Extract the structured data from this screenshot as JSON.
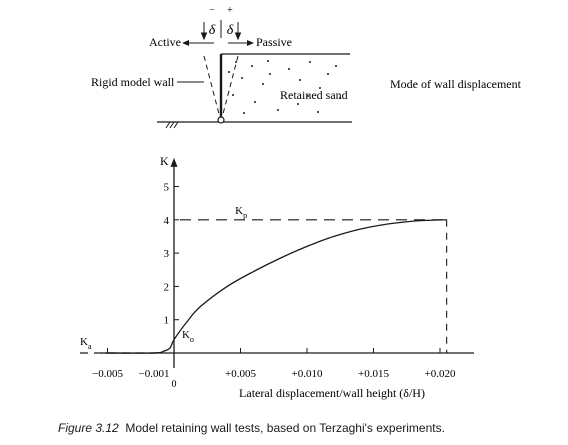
{
  "diagram": {
    "active_label": "Active",
    "passive_label": "Passive",
    "delta_minus": "−",
    "delta_plus": "+",
    "delta_left": "δ",
    "delta_right": "δ",
    "wall_label": "Rigid model wall",
    "sand_label": "Retained sand",
    "mode_label": "Mode of wall displacement"
  },
  "chart_data": {
    "type": "line",
    "ylabel": "K",
    "xlabel": "Lateral displacement/wall height (δ/H)",
    "xlim": [
      -0.006,
      0.023
    ],
    "ylim": [
      -0.3,
      5.8
    ],
    "x_ticks": [
      {
        "value": -0.005,
        "label": "−0.005"
      },
      {
        "value": -0.001,
        "label": "−0.001"
      },
      {
        "value": 0.005,
        "label": "+0.005"
      },
      {
        "value": 0.01,
        "label": "+0.010"
      },
      {
        "value": 0.015,
        "label": "+0.015"
      },
      {
        "value": 0.02,
        "label": "+0.020"
      }
    ],
    "zero_label": "0",
    "y_ticks": [
      {
        "value": 1,
        "label": "1"
      },
      {
        "value": 2,
        "label": "2"
      },
      {
        "value": 3,
        "label": "3"
      },
      {
        "value": 4,
        "label": "4"
      },
      {
        "value": 5,
        "label": "5"
      }
    ],
    "series": [
      {
        "x": [
          -0.0055,
          -0.0015,
          -0.0008,
          -0.0003,
          0.0,
          0.001,
          0.002,
          0.004,
          0.006,
          0.008,
          0.01,
          0.012,
          0.014,
          0.016,
          0.018,
          0.0195,
          0.0205
        ],
        "y": [
          0.0,
          0.0,
          0.05,
          0.15,
          0.4,
          0.95,
          1.4,
          2.0,
          2.45,
          2.85,
          3.2,
          3.5,
          3.72,
          3.87,
          3.96,
          3.99,
          4.0
        ]
      }
    ],
    "annotations": {
      "kp_label": "K",
      "kp_sub": "p",
      "ka_label": "K",
      "ka_sub": "a",
      "k0_label": "K",
      "k0_sub": "o",
      "kp_value": 4.0,
      "ka_value": 0.0,
      "peak_x": 0.0205
    },
    "grid": false
  },
  "caption": {
    "label": "Figure 3.12",
    "text": "Model retaining wall tests, based on Terzaghi's experiments."
  }
}
